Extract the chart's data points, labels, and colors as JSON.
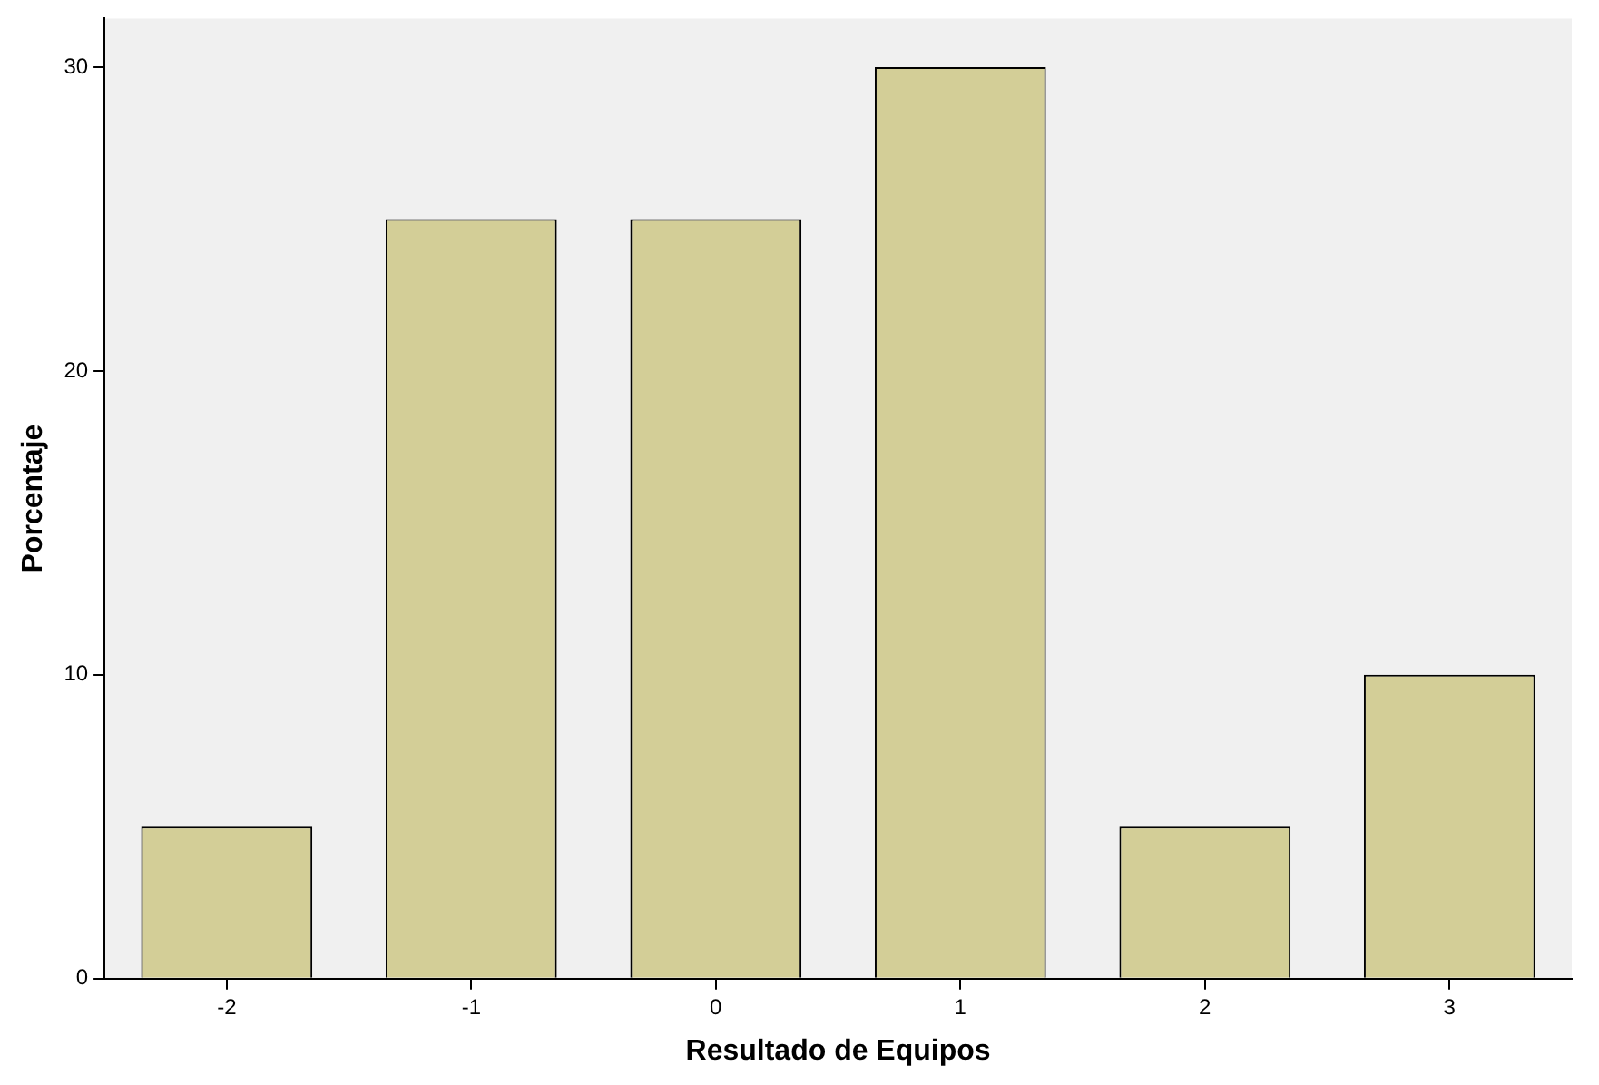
{
  "chart_data": {
    "type": "bar",
    "xlabel": "Resultado de Equipos",
    "ylabel": "Porcentaje",
    "categories": [
      "-2",
      "-1",
      "0",
      "1",
      "2",
      "3"
    ],
    "values": [
      5,
      25,
      25,
      30,
      5,
      10
    ],
    "color": "#d3ce97",
    "ylim": [
      0,
      31.6
    ],
    "yticks": [
      0,
      10,
      20,
      30
    ],
    "grid": false,
    "legend": false
  }
}
